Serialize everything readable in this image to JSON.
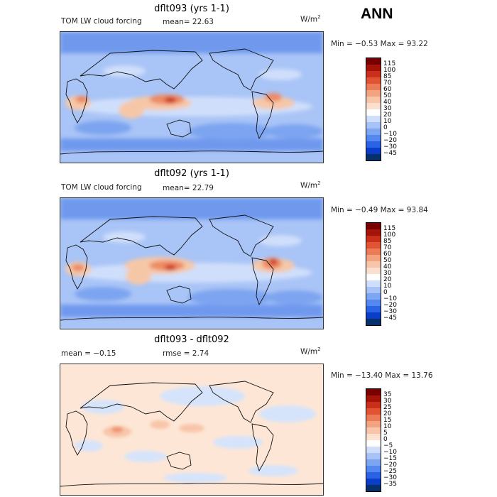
{
  "season": "ANN",
  "colors": {
    "abs_scale": [
      "#08306b",
      "#0a3ec8",
      "#2a63e6",
      "#5588ee",
      "#7ca5f2",
      "#a7c3f7",
      "#cfdffb",
      "#ffffff",
      "#fbe0cf",
      "#f8c5a8",
      "#f2a380",
      "#ec7c58",
      "#e05434",
      "#c8301c",
      "#a41408",
      "#780000"
    ],
    "diff_scale": [
      "#08306b",
      "#0a3ec8",
      "#2a63e6",
      "#5588ee",
      "#7ca5f2",
      "#a7c3f7",
      "#cfdffb",
      "#ffffff",
      "#fde2cf",
      "#f8c5a8",
      "#f2a380",
      "#ec7c58",
      "#e05434",
      "#c8301c",
      "#a41408",
      "#780000"
    ]
  },
  "panels": [
    {
      "title": "dflt093 (yrs 1-1)",
      "field": "TOM LW cloud forcing",
      "stat1": "mean=  22.63",
      "stat2": "",
      "units": "W/m",
      "minmax": "Min =  −0.53 Max =  93.22",
      "levels": [
        "115",
        "100",
        "85",
        "70",
        "60",
        "50",
        "40",
        "30",
        "20",
        "10",
        "0",
        "−10",
        "−20",
        "−30",
        "−45"
      ]
    },
    {
      "title": "dflt092 (yrs 1-1)",
      "field": "TOM LW cloud forcing",
      "stat1": "mean=  22.79",
      "stat2": "",
      "units": "W/m",
      "minmax": "Min =  −0.49 Max =  93.84",
      "levels": [
        "115",
        "100",
        "85",
        "70",
        "60",
        "50",
        "40",
        "30",
        "20",
        "10",
        "0",
        "−10",
        "−20",
        "−30",
        "−45"
      ]
    },
    {
      "title": "dflt093 - dflt092",
      "field": "",
      "stat1": "mean =  −0.15",
      "stat2": "rmse =   2.74",
      "units": "W/m",
      "minmax": "Min = −13.40 Max =  13.76",
      "levels": [
        "35",
        "30",
        "25",
        "20",
        "15",
        "10",
        "5",
        "0",
        "−5",
        "−10",
        "−15",
        "−20",
        "−25",
        "−30",
        "−35"
      ]
    }
  ]
}
